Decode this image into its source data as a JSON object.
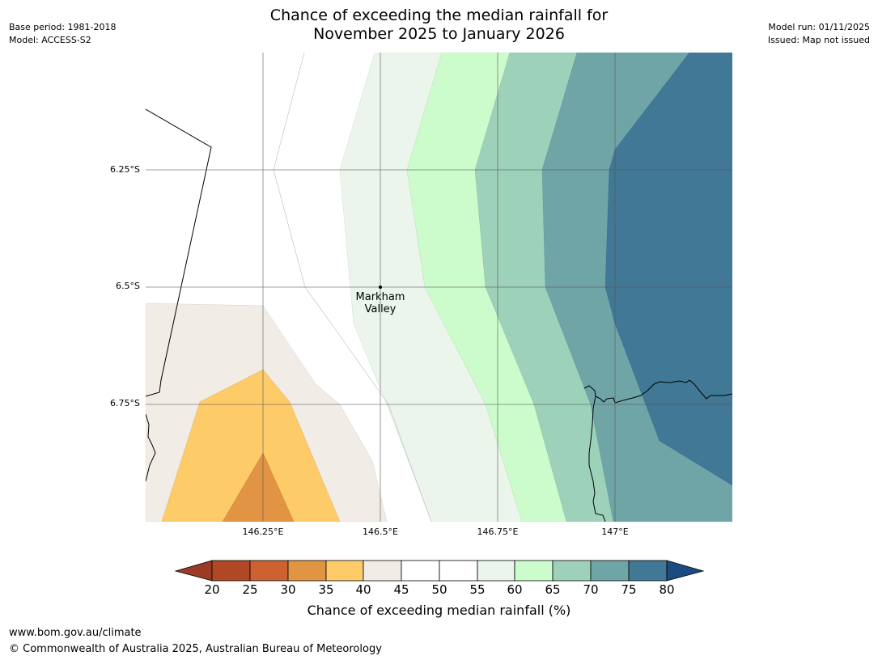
{
  "header": {
    "title_line1": "Chance of exceeding the median rainfall for",
    "title_line2": "November 2025 to January 2026",
    "base_period": "Base period: 1981-2018",
    "model": "Model: ACCESS-S2",
    "model_run": "Model run: 01/11/2025",
    "issued": "Issued: Map not issued"
  },
  "map": {
    "place_label_line1": "Markham",
    "place_label_line2": "Valley",
    "x_ticks": [
      "146.25°E",
      "146.5°E",
      "146.75°E",
      "147°E"
    ],
    "y_ticks": [
      "6.25°S",
      "6.5°S",
      "6.75°S"
    ]
  },
  "colorbar": {
    "label": "Chance of exceeding median rainfall (%)",
    "ticks": [
      "20",
      "25",
      "30",
      "35",
      "40",
      "45",
      "50",
      "55",
      "60",
      "65",
      "70",
      "75",
      "80"
    ],
    "colors": {
      "below_20": "#9b3a25",
      "20_25": "#b04725",
      "25_30": "#cc6231",
      "30_35": "#e09444",
      "35_40": "#fecb69",
      "40_45": "#f1ece6",
      "45_50": "#ffffff",
      "50_55": "#ffffff",
      "55_60": "#ebf5eb",
      "60_65": "#ccfccc",
      "65_70": "#9ed1b9",
      "70_75": "#6fa5a7",
      "75_80": "#407895",
      "above_80": "#1a4c80"
    }
  },
  "footer": {
    "url": "www.bom.gov.au/climate",
    "copyright": "© Commonwealth of Australia 2025, Australian Bureau of Meteorology"
  }
}
